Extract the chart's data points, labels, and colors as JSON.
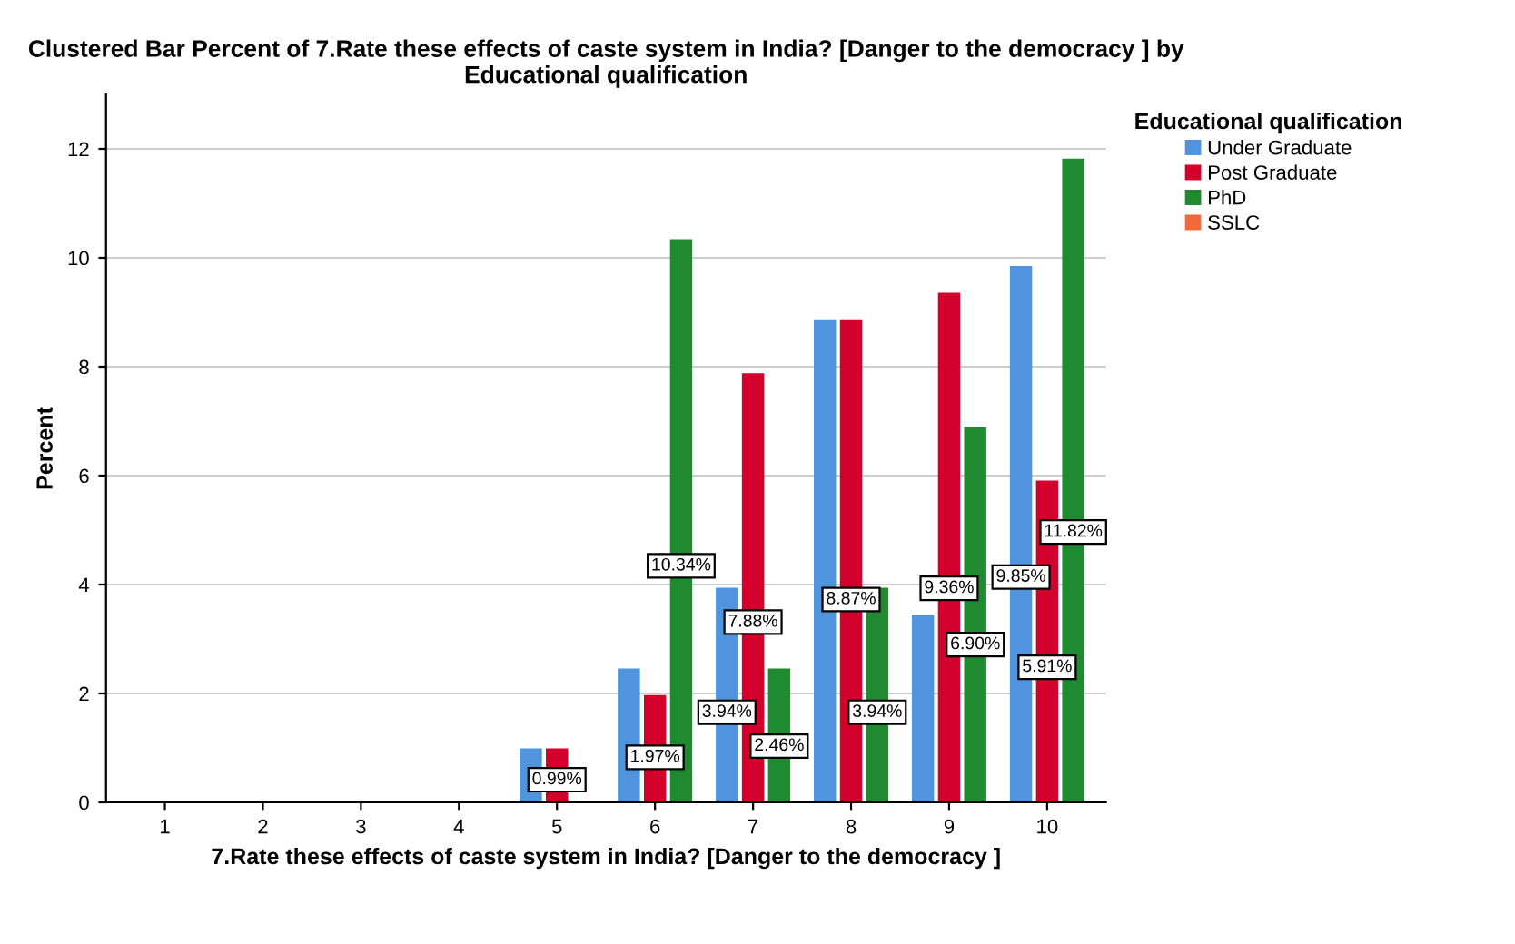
{
  "chart_data": {
    "type": "bar",
    "title": "Clustered Bar Percent of 7.Rate these effects of caste system in India? [Danger to the democracy ] by Educational qualification",
    "xlabel": "7.Rate these effects of caste system in India? [Danger to the democracy ]",
    "ylabel": "Percent",
    "legend_title": "Educational qualification",
    "categories": [
      "1",
      "2",
      "3",
      "4",
      "5",
      "6",
      "7",
      "8",
      "9",
      "10"
    ],
    "series": [
      {
        "name": "Under Graduate",
        "color": "#4f94dc",
        "values": [
          null,
          null,
          null,
          null,
          0.99,
          2.46,
          3.94,
          8.87,
          3.45,
          9.85
        ],
        "value_labels": [
          null,
          null,
          null,
          null,
          null,
          null,
          "3.94%",
          null,
          null,
          "9.85%"
        ]
      },
      {
        "name": "Post Graduate",
        "color": "#d2002a",
        "values": [
          null,
          null,
          null,
          null,
          0.99,
          1.97,
          7.88,
          8.87,
          9.36,
          5.91
        ],
        "value_labels": [
          null,
          null,
          null,
          null,
          "0.99%",
          "1.97%",
          "7.88%",
          "8.87%",
          "9.36%",
          "5.91%"
        ]
      },
      {
        "name": "PhD",
        "color": "#1f8a30",
        "values": [
          null,
          null,
          null,
          null,
          null,
          10.34,
          2.46,
          3.94,
          6.9,
          11.82
        ],
        "value_labels": [
          null,
          null,
          null,
          null,
          null,
          "10.34%",
          "2.46%",
          "3.94%",
          "6.90%",
          "11.82%"
        ]
      },
      {
        "name": "SSLC",
        "color": "#f06a3c",
        "values": [
          null,
          null,
          null,
          null,
          null,
          null,
          null,
          null,
          null,
          null
        ]
      }
    ],
    "ylim": [
      0,
      13
    ],
    "yticks": [
      0,
      2,
      4,
      6,
      8,
      10,
      12
    ],
    "grid": "y",
    "legend": "top right"
  }
}
